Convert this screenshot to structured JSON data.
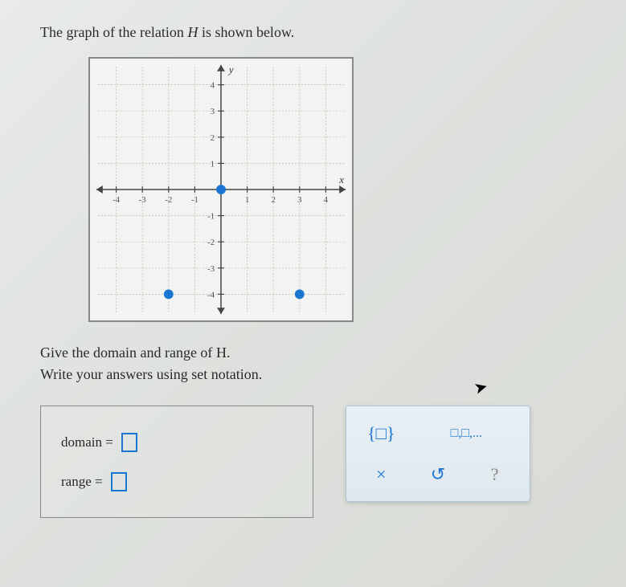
{
  "question": {
    "intro_before": "The graph of the relation ",
    "relation_name": "H",
    "intro_after": " is shown below."
  },
  "graph": {
    "x_label": "x",
    "y_label": "y",
    "x_ticks": [
      -4,
      -3,
      -2,
      -1,
      1,
      2,
      3,
      4
    ],
    "y_ticks": [
      -4,
      -3,
      -2,
      -1,
      1,
      2,
      3,
      4
    ],
    "points": [
      {
        "x": 0,
        "y": 0
      },
      {
        "x": -2,
        "y": -4
      },
      {
        "x": 3,
        "y": -4
      }
    ],
    "point_color": "#1976d2",
    "axis_color": "#444444",
    "grid_color": "#b8b8b0",
    "tick_font_size": 11
  },
  "sub_question": {
    "line1_before": "Give the domain and range of ",
    "line1_name": "H",
    "line1_after": ".",
    "line2": "Write your answers using set notation."
  },
  "answers": {
    "domain_label": "domain =",
    "range_label": "range ="
  },
  "toolbox": {
    "set_braces": "{□}",
    "list": "□,□,...",
    "close": "×",
    "reset": "↺",
    "help": "?"
  }
}
